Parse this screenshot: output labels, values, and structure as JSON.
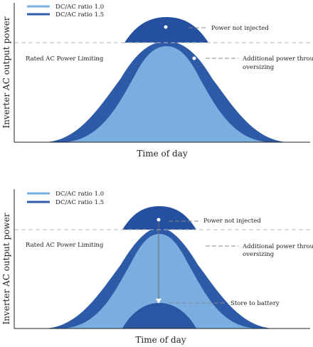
{
  "colors": {
    "ratio_1_0": "#7aaee0",
    "ratio_1_5": "#2e5ba8",
    "clipped": "#25509f",
    "battery": "#2a56a3",
    "limit_line": "#b7b7b7",
    "leader": "#8a8a8a"
  },
  "legend": {
    "ratio_1_0": "DC/AC ratio 1.0",
    "ratio_1_5": "DC/AC ratio 1.5"
  },
  "axes": {
    "y_label": "Inverter AC output power",
    "x_label": "Time of day"
  },
  "panels": [
    {
      "limit_label": "Rated AC Power Limiting",
      "annotations": {
        "not_injected": "Power not injected",
        "additional_line1": "Additional power through",
        "additional_line2": "oversizing"
      }
    },
    {
      "limit_label": "Rated AC Power Limiting",
      "annotations": {
        "not_injected": "Power not injected",
        "additional_line1": "Additional power through",
        "additional_line2": "oversizing",
        "store": "Store to battery"
      }
    }
  ]
}
